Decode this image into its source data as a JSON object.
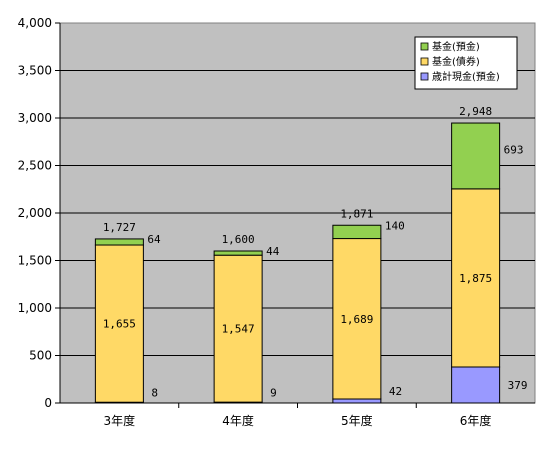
{
  "chart_data": {
    "type": "bar",
    "stacked": true,
    "categories": [
      "3年度",
      "4年度",
      "5年度",
      "6年度"
    ],
    "series": [
      {
        "name": "歳計現金(預金)",
        "values": [
          8,
          9,
          42,
          379
        ],
        "color": "#9999ff"
      },
      {
        "name": "基金(債券)",
        "values": [
          1655,
          1547,
          1689,
          1875
        ],
        "color": "#ffd966"
      },
      {
        "name": "基金(預金)",
        "values": [
          64,
          44,
          140,
          693
        ],
        "color": "#92d050"
      }
    ],
    "totals": [
      1727,
      1600,
      1871,
      2948
    ],
    "value_labels": {
      "歳計現金(預金)": [
        "8",
        "9",
        "42",
        "379"
      ],
      "基金(債券)": [
        "1,655",
        "1,547",
        "1,689",
        "1,875"
      ],
      "基金(預金)": [
        "64",
        "44",
        "140",
        "693"
      ],
      "totals": [
        "1,727",
        "1,600",
        "1,871",
        "2,948"
      ]
    },
    "yticks": [
      "0",
      "500",
      "1,000",
      "1,500",
      "2,000",
      "2,500",
      "3,000",
      "3,500",
      "4,000"
    ],
    "ylim": [
      0,
      4000
    ],
    "title": "",
    "xlabel": "",
    "ylabel": "",
    "legend_position": "top-right",
    "legend_order": [
      "基金(預金)",
      "基金(債券)",
      "歳計現金(預金)"
    ],
    "plot_background": "#c0c0c0",
    "grid": "horizontal"
  }
}
